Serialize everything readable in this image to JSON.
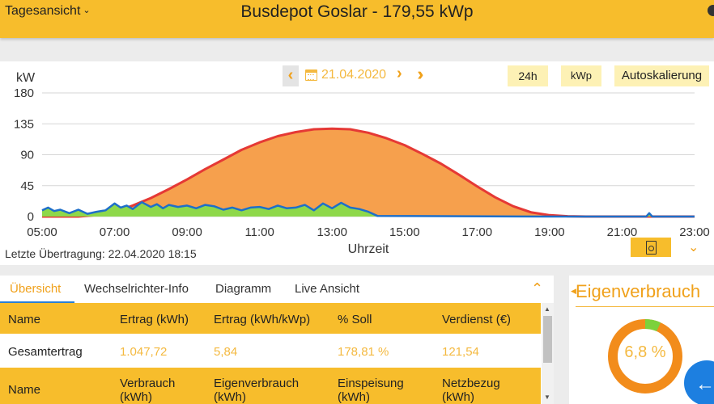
{
  "header": {
    "view_label": "Tagesansicht",
    "title": "Busdepot Goslar - 179,55 kWp"
  },
  "chart_toolbar": {
    "date": "21.04.2020",
    "btn_24h": "24h",
    "btn_kwp": "kWp",
    "btn_autoscale": "Autoskalierung"
  },
  "chart_data": {
    "type": "area",
    "ylabel": "kW",
    "xlabel": "Uhrzeit",
    "ylim": [
      0,
      180
    ],
    "xlim": [
      "05:00",
      "23:00"
    ],
    "y_ticks": [
      0,
      45,
      90,
      135,
      180
    ],
    "x_ticks": [
      "05:00",
      "07:00",
      "09:00",
      "11:00",
      "13:00",
      "15:00",
      "17:00",
      "19:00",
      "21:00",
      "23:00"
    ],
    "grid": true,
    "series": [
      {
        "color": "#e53935",
        "fill": "#f6a04d",
        "x": [
          "05:00",
          "06:00",
          "06:30",
          "07:00",
          "07:30",
          "08:00",
          "08:30",
          "09:00",
          "09:30",
          "10:00",
          "10:30",
          "11:00",
          "11:30",
          "12:00",
          "12:30",
          "13:00",
          "13:30",
          "14:00",
          "14:30",
          "15:00",
          "15:30",
          "16:00",
          "16:30",
          "17:00",
          "17:30",
          "18:00",
          "18:30",
          "19:00",
          "19:30",
          "20:00",
          "20:30",
          "21:00",
          "21:30",
          "22:00",
          "23:00"
        ],
        "values": [
          0,
          0,
          2,
          7,
          16,
          27,
          40,
          54,
          69,
          83,
          97,
          108,
          117,
          123,
          127,
          128,
          127,
          122,
          114,
          104,
          91,
          77,
          61,
          44,
          28,
          15,
          6,
          2,
          0.5,
          0,
          0,
          0,
          0,
          0,
          0
        ]
      },
      {
        "color": "#1e6fc9",
        "fill": "#8ed84a",
        "x": [
          "05:00",
          "05:10",
          "05:20",
          "05:30",
          "05:45",
          "06:00",
          "06:15",
          "06:30",
          "06:45",
          "07:00",
          "07:10",
          "07:20",
          "07:30",
          "07:45",
          "08:00",
          "08:10",
          "08:20",
          "08:30",
          "08:45",
          "09:00",
          "09:15",
          "09:30",
          "09:45",
          "10:00",
          "10:15",
          "10:30",
          "10:45",
          "11:00",
          "11:15",
          "11:30",
          "11:45",
          "12:00",
          "12:15",
          "12:30",
          "12:45",
          "13:00",
          "13:15",
          "13:30",
          "13:45",
          "14:00",
          "14:15",
          "19:00",
          "20:00",
          "20:30",
          "21:00",
          "21:40",
          "21:45",
          "21:50",
          "22:00",
          "23:00"
        ],
        "values": [
          9,
          13,
          8,
          10,
          5,
          10,
          4,
          7,
          9,
          19,
          13,
          16,
          11,
          21,
          14,
          18,
          12,
          17,
          14,
          16,
          12,
          17,
          15,
          10,
          13,
          9,
          13,
          14,
          11,
          16,
          12,
          13,
          17,
          9,
          19,
          12,
          20,
          13,
          11,
          7,
          1,
          0,
          0,
          0,
          0,
          0,
          5,
          0,
          0,
          0
        ]
      }
    ]
  },
  "footer_chart": {
    "last_upload": "Letzte Übertragung: 22.04.2020 18:15"
  },
  "tabs": [
    "Übersicht",
    "Wechselrichter-Info",
    "Diagramm",
    "Live Ansicht"
  ],
  "table": {
    "header1": [
      "Name",
      "Ertrag (kWh)",
      "Ertrag (kWh/kWp)",
      "% Soll",
      "Verdienst (€)"
    ],
    "row1": [
      "Gesamtertrag",
      "1.047,72",
      "5,84",
      "178,81 %",
      "121,54"
    ],
    "header2": [
      "Name",
      "Verbrauch (kWh)",
      "Eigenverbrauch (kWh)",
      "Einspeisung (kWh)",
      "Netzbezug (kWh)"
    ]
  },
  "eigenverbrauch": {
    "title": "Eigenverbrauch",
    "value_label": "6,8 %",
    "percent": 6.8,
    "color_main": "#f28c1b",
    "color_self": "#7cd13c"
  }
}
